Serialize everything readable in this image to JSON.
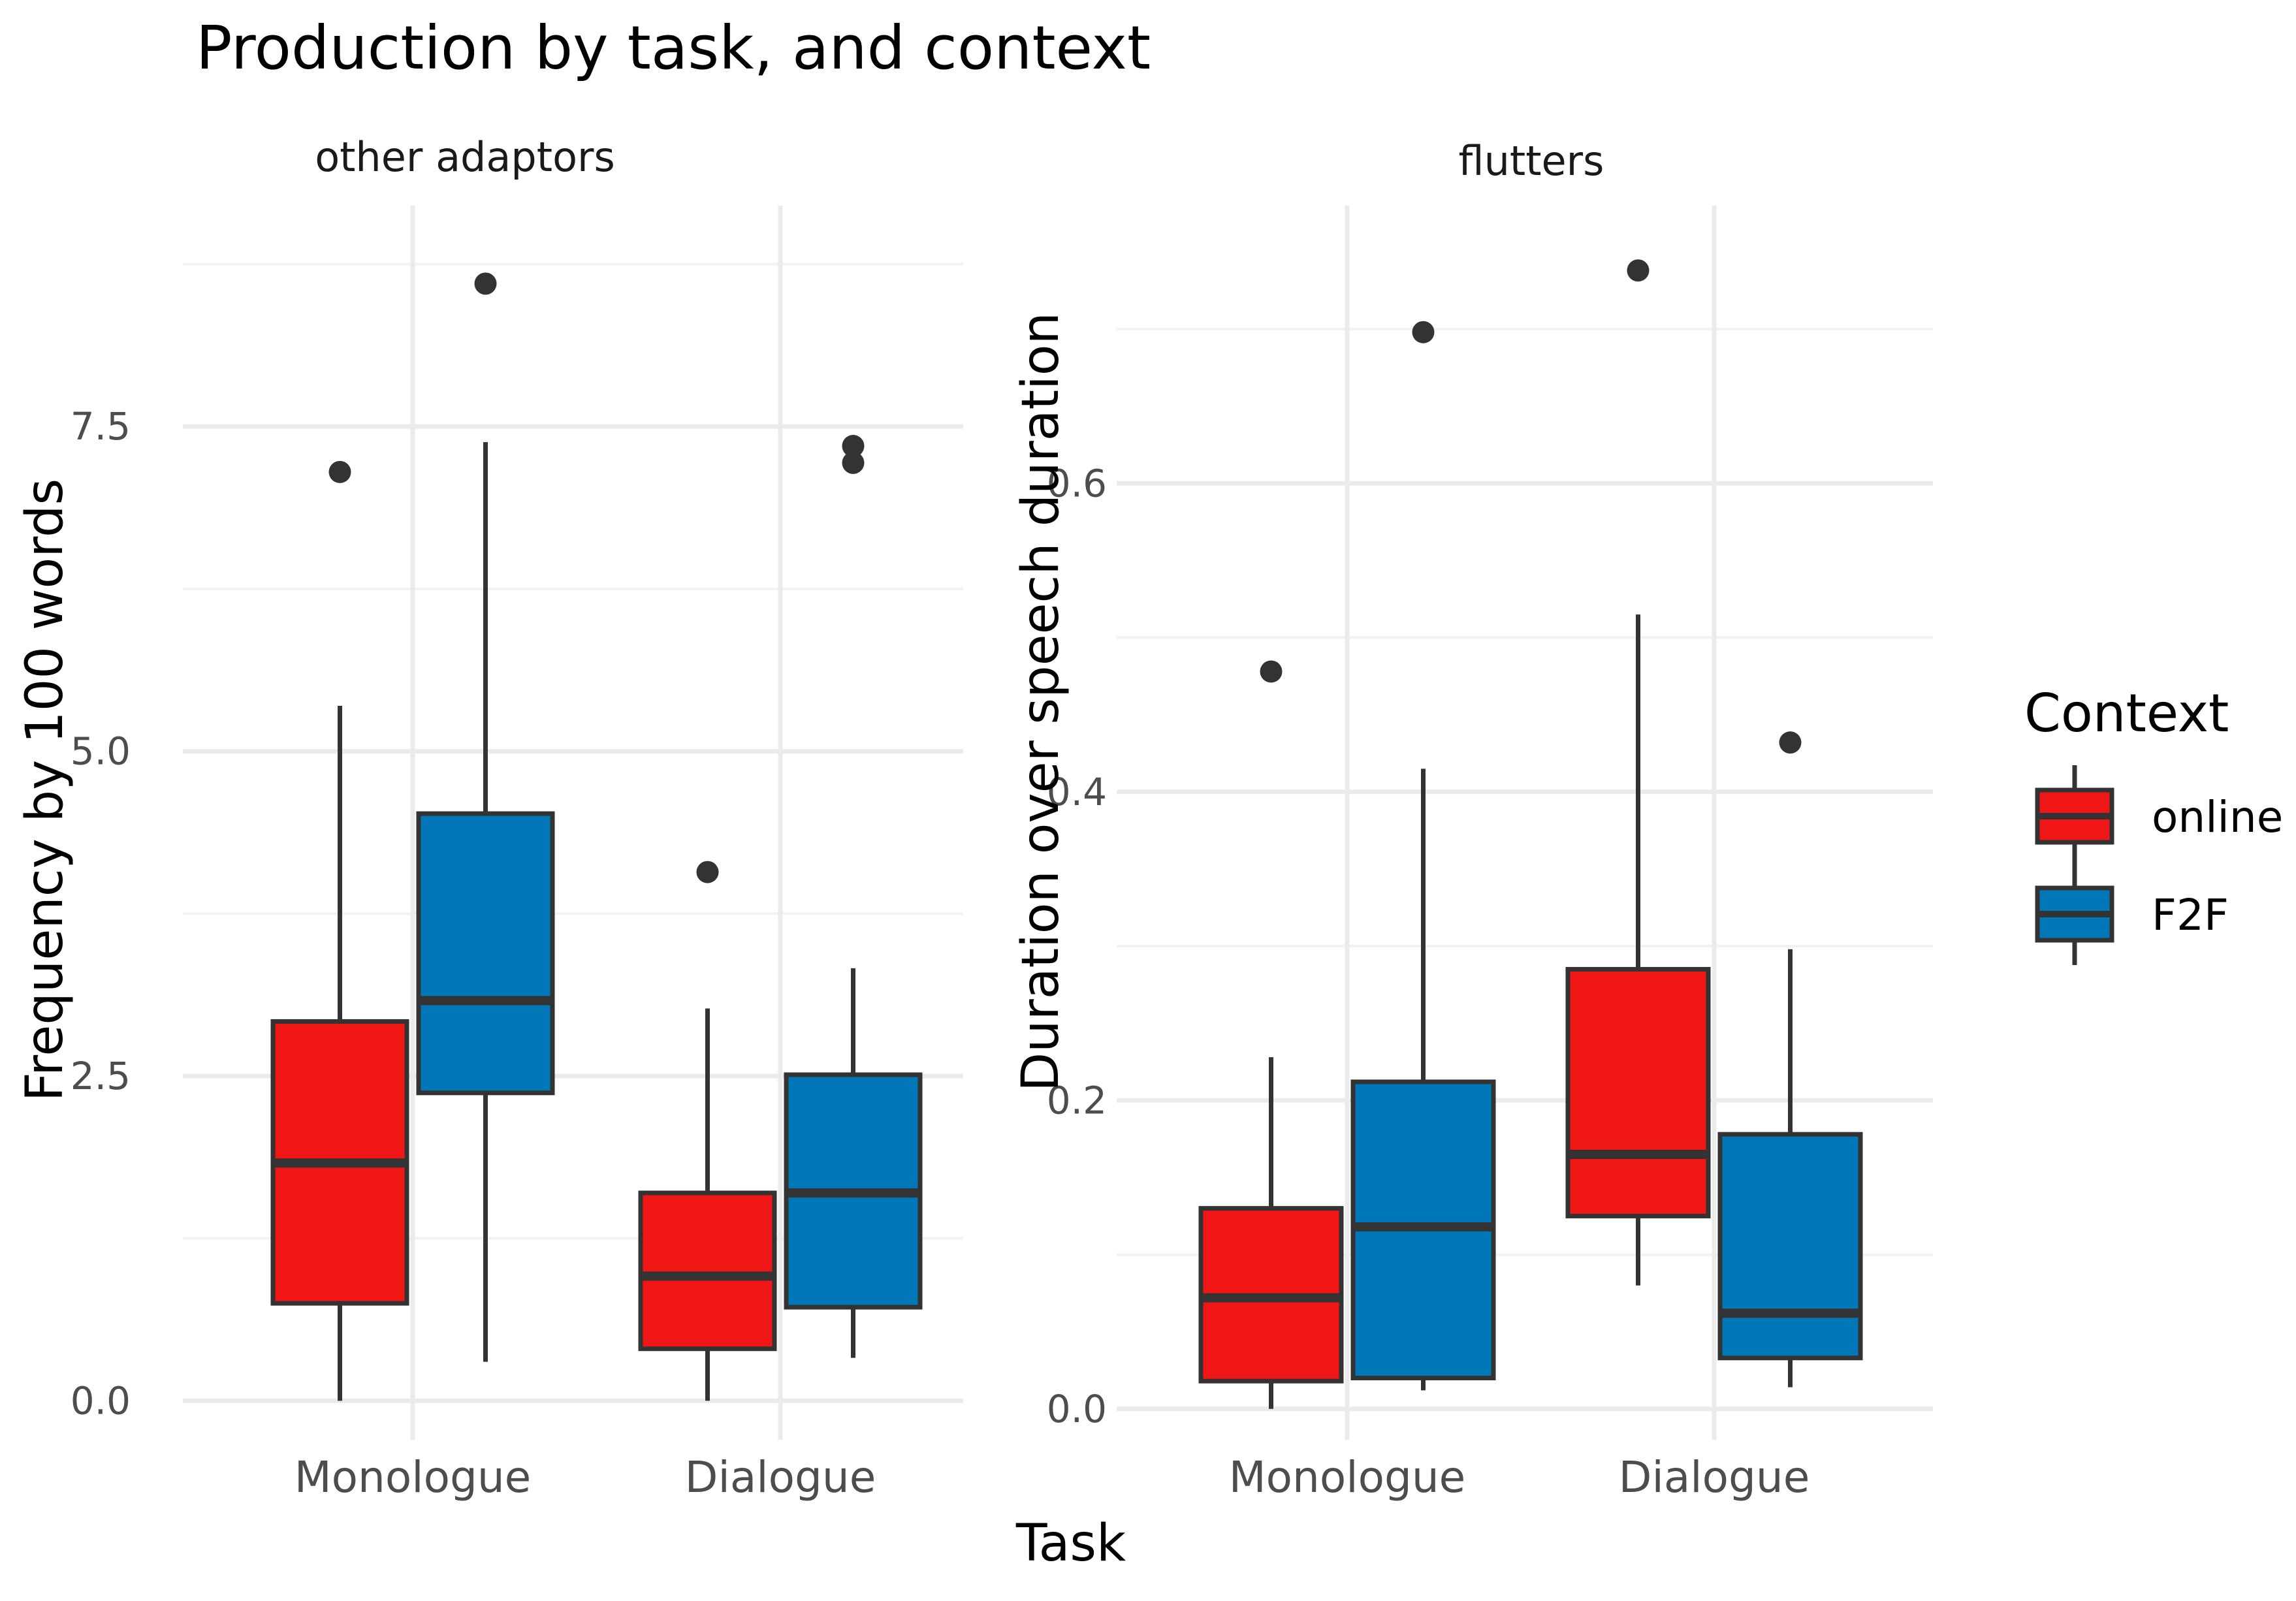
{
  "chart_data": {
    "type": "boxplot",
    "title": "Production by task, and context",
    "xlabel": "Task",
    "legend": {
      "title": "Context",
      "placement": "right",
      "entries": [
        {
          "name": "online",
          "color": "#f01616"
        },
        {
          "name": "F2F",
          "color": "#0077b6"
        }
      ]
    },
    "panels": [
      {
        "strip": "other adaptors",
        "ylabel": "Frequency by 100 words",
        "ylim": [
          -0.3,
          9.2
        ],
        "yticks": [
          {
            "value": 0,
            "label": "0.0"
          },
          {
            "value": 2.5,
            "label": "2.5"
          },
          {
            "value": 5,
            "label": "5.0"
          },
          {
            "value": 7.5,
            "label": "7.5"
          }
        ],
        "categories": [
          "Monologue",
          "Dialogue"
        ],
        "series": [
          {
            "name": "online",
            "boxes": [
              {
                "category": "Monologue",
                "min": 0,
                "q1": 0.75,
                "median": 1.83,
                "q3": 2.92,
                "max": 5.35,
                "outliers": [
                  7.15
                ]
              },
              {
                "category": "Dialogue",
                "min": 0,
                "q1": 0.4,
                "median": 0.96,
                "q3": 1.6,
                "max": 3.02,
                "outliers": [
                  4.07
                ]
              }
            ]
          },
          {
            "name": "F2F",
            "boxes": [
              {
                "category": "Monologue",
                "min": 0.3,
                "q1": 2.37,
                "median": 3.08,
                "q3": 4.52,
                "max": 7.38,
                "outliers": [
                  8.6
                ]
              },
              {
                "category": "Dialogue",
                "min": 0.33,
                "q1": 0.72,
                "median": 1.6,
                "q3": 2.51,
                "max": 3.33,
                "outliers": [
                  7.22,
                  7.35
                ]
              }
            ]
          }
        ]
      },
      {
        "strip": "flutters",
        "ylabel": "Duration over speech duration",
        "ylim": [
          -0.02,
          0.78
        ],
        "yticks": [
          {
            "value": 0,
            "label": "0.0"
          },
          {
            "value": 0.2,
            "label": "0.2"
          },
          {
            "value": 0.4,
            "label": "0.4"
          },
          {
            "value": 0.6,
            "label": "0.6"
          }
        ],
        "categories": [
          "Monologue",
          "Dialogue"
        ],
        "series": [
          {
            "name": "online",
            "boxes": [
              {
                "category": "Monologue",
                "min": 0,
                "q1": 0.018,
                "median": 0.072,
                "q3": 0.13,
                "max": 0.228,
                "outliers": [
                  0.478
                ]
              },
              {
                "category": "Dialogue",
                "min": 0.08,
                "q1": 0.125,
                "median": 0.165,
                "q3": 0.285,
                "max": 0.515,
                "outliers": [
                  0.738
                ]
              }
            ]
          },
          {
            "name": "F2F",
            "boxes": [
              {
                "category": "Monologue",
                "min": 0.012,
                "q1": 0.02,
                "median": 0.118,
                "q3": 0.212,
                "max": 0.415,
                "outliers": [
                  0.698
                ]
              },
              {
                "category": "Dialogue",
                "min": 0.014,
                "q1": 0.033,
                "median": 0.062,
                "q3": 0.178,
                "max": 0.298,
                "outliers": [
                  0.432
                ]
              }
            ]
          }
        ]
      }
    ],
    "grid": true
  }
}
